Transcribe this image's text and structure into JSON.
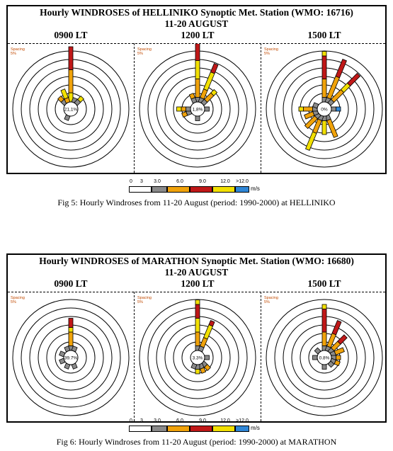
{
  "colors": {
    "white": "#ffffff",
    "gray": "#8a8a8a",
    "orange": "#f0a20a",
    "red": "#c01818",
    "yellow": "#f2e000",
    "blue": "#2f86d6"
  },
  "figures": [
    {
      "title_line1": "Hourly WINDROSES of HELLINIKO Synoptic Met. Station (WMO: 16716)",
      "title_line2": "11-20 AUGUST",
      "legend": {
        "ticks": [
          "0",
          "3",
          "3.0",
          "6.0",
          "9.0",
          "12.0",
          ">12.0"
        ],
        "unit": "m/s"
      },
      "caption": "Fig 5: Hourly Windroses from 11-20 August (period: 1990-2000) at HELLINIKO"
    },
    {
      "title_line1": "Hourly WINDROSES of MARATHON Synoptic Met. Station (WMO: 16680)",
      "title_line2": "11-20 AUGUST",
      "legend": {
        "ticks": [
          "0",
          "3",
          "3.0",
          "6.0",
          "9.0",
          "12.0",
          ">12.0"
        ],
        "unit": "m/s"
      },
      "caption": "Fig 6: Hourly Windroses from 11-20 August (period: 1990-2000) at MARATHON"
    }
  ],
  "chart_data": [
    {
      "type": "windrose",
      "station": "HELLINIKO",
      "speed_bins_ms": [
        "0-3",
        "3.0-6.0",
        "6.0-9.0",
        "9.0-12.0",
        ">12.0"
      ],
      "ring_spacing_label": "Spacing",
      "ring_spacing_value": "5%",
      "panels": [
        {
          "time": "0900 LT",
          "calm": "21,1%",
          "petals": [
            {
              "dir": 0,
              "segments": [
                [
                  "yellow",
                  2
                ],
                [
                  "orange",
                  5
                ],
                [
                  "red",
                  5
                ]
              ]
            },
            {
              "dir": 22.5,
              "segments": [
                [
                  "gray",
                  1
                ]
              ]
            },
            {
              "dir": 45,
              "segments": [
                [
                  "gray",
                  1
                ],
                [
                  "yellow",
                  1
                ]
              ]
            },
            {
              "dir": 202.5,
              "segments": [
                [
                  "gray",
                  1
                ]
              ]
            },
            {
              "dir": 315,
              "segments": [
                [
                  "gray",
                  1
                ],
                [
                  "orange",
                  1
                ]
              ]
            },
            {
              "dir": 337.5,
              "segments": [
                [
                  "orange",
                  1
                ],
                [
                  "yellow",
                  2
                ]
              ]
            }
          ]
        },
        {
          "time": "1200 LT",
          "calm": "1,8%",
          "petals": [
            {
              "dir": 0,
              "segments": [
                [
                  "gray",
                  1
                ],
                [
                  "orange",
                  4
                ],
                [
                  "yellow",
                  4
                ],
                [
                  "red",
                  4
                ],
                [
                  "orange",
                  1
                ]
              ]
            },
            {
              "dir": 22.5,
              "segments": [
                [
                  "gray",
                  1
                ],
                [
                  "orange",
                  2
                ],
                [
                  "yellow",
                  4
                ],
                [
                  "red",
                  2
                ]
              ]
            },
            {
              "dir": 45,
              "segments": [
                [
                  "gray",
                  1
                ],
                [
                  "orange",
                  2
                ],
                [
                  "yellow",
                  1
                ]
              ]
            },
            {
              "dir": 90,
              "segments": [
                [
                  "gray",
                  1
                ]
              ]
            },
            {
              "dir": 180,
              "segments": [
                [
                  "gray",
                  1
                ]
              ]
            },
            {
              "dir": 247.5,
              "segments": [
                [
                  "gray",
                  1
                ],
                [
                  "orange",
                  1
                ]
              ]
            },
            {
              "dir": 270,
              "segments": [
                [
                  "gray",
                  1
                ],
                [
                  "orange",
                  1
                ],
                [
                  "yellow",
                  1
                ]
              ]
            },
            {
              "dir": 337.5,
              "segments": [
                [
                  "gray",
                  1
                ],
                [
                  "orange",
                  1
                ]
              ]
            }
          ]
        },
        {
          "time": "1500 LT",
          "calm": "0%",
          "petals": [
            {
              "dir": 0,
              "segments": [
                [
                  "gray",
                  1
                ],
                [
                  "orange",
                  4
                ],
                [
                  "red",
                  5
                ],
                [
                  "yellow",
                  1
                ]
              ]
            },
            {
              "dir": 22.5,
              "segments": [
                [
                  "gray",
                  1
                ],
                [
                  "orange",
                  5
                ],
                [
                  "red",
                  4
                ]
              ]
            },
            {
              "dir": 45,
              "segments": [
                [
                  "gray",
                  1
                ],
                [
                  "orange",
                  3
                ],
                [
                  "yellow",
                  2
                ],
                [
                  "red",
                  3
                ]
              ]
            },
            {
              "dir": 90,
              "segments": [
                [
                  "gray",
                  1
                ],
                [
                  "blue",
                  1
                ]
              ]
            },
            {
              "dir": 157.5,
              "segments": [
                [
                  "gray",
                  1
                ],
                [
                  "orange",
                  4
                ]
              ]
            },
            {
              "dir": 180,
              "segments": [
                [
                  "gray",
                  1
                ],
                [
                  "yellow",
                  3
                ]
              ]
            },
            {
              "dir": 202.5,
              "segments": [
                [
                  "gray",
                  1
                ],
                [
                  "orange",
                  3
                ],
                [
                  "yellow",
                  4
                ]
              ]
            },
            {
              "dir": 225,
              "segments": [
                [
                  "gray",
                  1
                ],
                [
                  "orange",
                  3
                ]
              ]
            },
            {
              "dir": 247.5,
              "segments": [
                [
                  "gray",
                  1
                ],
                [
                  "orange",
                  2
                ]
              ]
            },
            {
              "dir": 270,
              "segments": [
                [
                  "gray",
                  1
                ],
                [
                  "orange",
                  2
                ],
                [
                  "yellow",
                  1
                ]
              ]
            },
            {
              "dir": 292.5,
              "segments": [
                [
                  "gray",
                  1
                ]
              ]
            }
          ]
        }
      ]
    },
    {
      "type": "windrose",
      "station": "MARATHON",
      "speed_bins_ms": [
        "0-3",
        "3.0-6.0",
        "6.0-9.0",
        "9.0-12.0",
        ">12.0"
      ],
      "ring_spacing_label": "Spacing",
      "ring_spacing_value": "5%",
      "panels": [
        {
          "time": "0900 LT",
          "calm": "39.7%",
          "petals": [
            {
              "dir": 0,
              "segments": [
                [
                  "gray",
                  1
                ],
                [
                  "orange",
                  3
                ],
                [
                  "yellow",
                  1
                ],
                [
                  "red",
                  2
                ]
              ]
            },
            {
              "dir": 22.5,
              "segments": [
                [
                  "gray",
                  1
                ]
              ]
            },
            {
              "dir": 157.5,
              "segments": [
                [
                  "gray",
                  1
                ]
              ]
            },
            {
              "dir": 202.5,
              "segments": [
                [
                  "gray",
                  1
                ]
              ]
            },
            {
              "dir": 247.5,
              "segments": [
                [
                  "gray",
                  1
                ]
              ]
            },
            {
              "dir": 292.5,
              "segments": [
                [
                  "gray",
                  1
                ]
              ]
            },
            {
              "dir": 337.5,
              "segments": [
                [
                  "gray",
                  1
                ]
              ]
            }
          ]
        },
        {
          "time": "1200 LT",
          "calm": "3.3%",
          "petals": [
            {
              "dir": 0,
              "segments": [
                [
                  "gray",
                  1
                ],
                [
                  "orange",
                  3
                ],
                [
                  "yellow",
                  3
                ],
                [
                  "red",
                  3
                ],
                [
                  "yellow",
                  1
                ]
              ]
            },
            {
              "dir": 22.5,
              "segments": [
                [
                  "gray",
                  1
                ],
                [
                  "orange",
                  2
                ],
                [
                  "yellow",
                  3
                ],
                [
                  "red",
                  1
                ]
              ]
            },
            {
              "dir": 90,
              "segments": [
                [
                  "gray",
                  1
                ]
              ]
            },
            {
              "dir": 135,
              "segments": [
                [
                  "gray",
                  1
                ],
                [
                  "orange",
                  1
                ]
              ]
            },
            {
              "dir": 157.5,
              "segments": [
                [
                  "gray",
                  1
                ],
                [
                  "orange",
                  1
                ]
              ]
            },
            {
              "dir": 180,
              "segments": [
                [
                  "gray",
                  1
                ],
                [
                  "yellow",
                  1
                ]
              ]
            },
            {
              "dir": 202.5,
              "segments": [
                [
                  "gray",
                  1
                ]
              ]
            }
          ]
        },
        {
          "time": "1500 LT",
          "calm": "0.8%",
          "petals": [
            {
              "dir": 0,
              "segments": [
                [
                  "gray",
                  1
                ],
                [
                  "orange",
                  3
                ],
                [
                  "red",
                  5
                ],
                [
                  "yellow",
                  1
                ]
              ]
            },
            {
              "dir": 22.5,
              "segments": [
                [
                  "gray",
                  1
                ],
                [
                  "orange",
                  3
                ],
                [
                  "red",
                  3
                ]
              ]
            },
            {
              "dir": 45,
              "segments": [
                [
                  "gray",
                  1
                ],
                [
                  "orange",
                  2
                ],
                [
                  "red",
                  2
                ]
              ]
            },
            {
              "dir": 67.5,
              "segments": [
                [
                  "gray",
                  1
                ],
                [
                  "orange",
                  2
                ]
              ]
            },
            {
              "dir": 90,
              "segments": [
                [
                  "gray",
                  1
                ],
                [
                  "orange",
                  1
                ]
              ]
            },
            {
              "dir": 112.5,
              "segments": [
                [
                  "gray",
                  1
                ],
                [
                  "orange",
                  1
                ]
              ]
            },
            {
              "dir": 135,
              "segments": [
                [
                  "gray",
                  1
                ]
              ]
            },
            {
              "dir": 180,
              "segments": [
                [
                  "gray",
                  1
                ]
              ]
            },
            {
              "dir": 270,
              "segments": [
                [
                  "gray",
                  1
                ]
              ]
            },
            {
              "dir": 315,
              "segments": [
                [
                  "gray",
                  1
                ]
              ]
            }
          ]
        }
      ]
    }
  ]
}
